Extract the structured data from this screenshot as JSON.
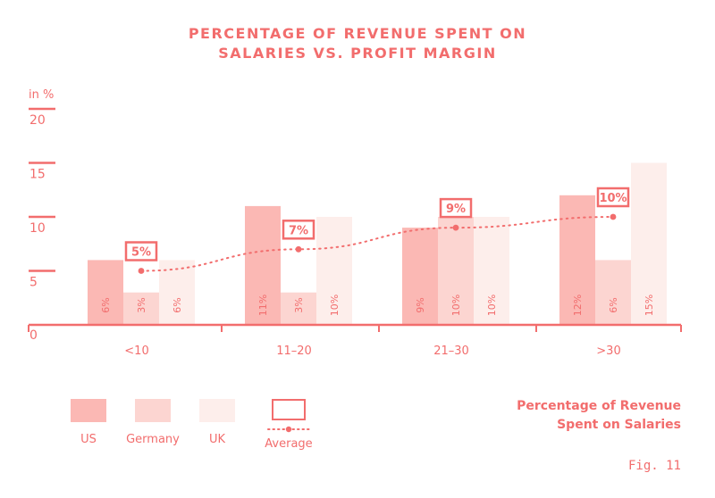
{
  "colors": {
    "accent": "#f26d6d",
    "us": "#fbb8b4",
    "germany": "#fcd5d1",
    "uk": "#fdeeeb"
  },
  "chart_data": {
    "type": "bar",
    "title_lines": [
      "PERCENTAGE OF REVENUE SPENT ON",
      "SALARIES VS. PROFIT MARGIN"
    ],
    "ylabel": "in %",
    "yticks": [
      0,
      5,
      10,
      15,
      20
    ],
    "ylim": [
      0,
      20
    ],
    "categories": [
      "<10",
      "11–20",
      "21–30",
      ">30"
    ],
    "series": [
      {
        "name": "US",
        "values": [
          6,
          11,
          9,
          12
        ],
        "labels": [
          "6%",
          "11%",
          "9%",
          "12%"
        ]
      },
      {
        "name": "Germany",
        "values": [
          3,
          3,
          10,
          6
        ],
        "labels": [
          "3%",
          "3%",
          "10%",
          "6%"
        ]
      },
      {
        "name": "UK",
        "values": [
          6,
          10,
          10,
          15
        ],
        "labels": [
          "6%",
          "10%",
          "10%",
          "15%"
        ]
      }
    ],
    "average": {
      "name": "Average",
      "values": [
        5,
        7,
        9,
        10
      ],
      "labels": [
        "5%",
        "7%",
        "9%",
        "10%"
      ],
      "style": "dotted"
    },
    "legend_position": "bottom-left",
    "grid": false
  },
  "caption_lines": [
    "Percentage of Revenue",
    "Spent on Salaries"
  ],
  "figure_label": "Fig. 11"
}
